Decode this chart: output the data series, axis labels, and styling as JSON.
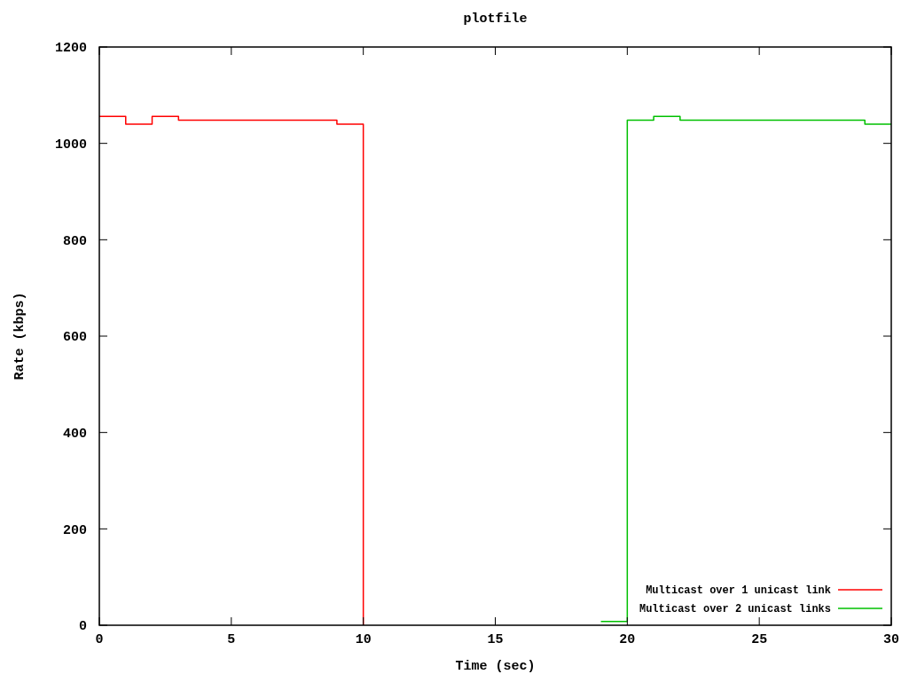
{
  "chart_data": {
    "type": "step",
    "title": "plotfile",
    "xlabel": "Time (sec)",
    "ylabel": "Rate (kbps)",
    "xlim": [
      0,
      30
    ],
    "xticks": [
      0,
      5,
      10,
      15,
      20,
      25,
      30
    ],
    "ylim": [
      0,
      1200
    ],
    "yticks": [
      0,
      200,
      400,
      600,
      800,
      1000,
      1200
    ],
    "legend": "bottom right",
    "series": [
      {
        "name": "Multicast over 1 unicast link",
        "color": "#ff0000",
        "x": [
          0,
          1,
          2,
          3,
          9,
          10
        ],
        "values": [
          1056,
          1040,
          1056,
          1048,
          1040,
          0
        ]
      },
      {
        "name": "Multicast over 2 unicast links",
        "color": "#00c000",
        "x": [
          19,
          20,
          21,
          22,
          29,
          30
        ],
        "values": [
          8,
          1048,
          1056,
          1048,
          1040,
          1040
        ]
      }
    ]
  }
}
